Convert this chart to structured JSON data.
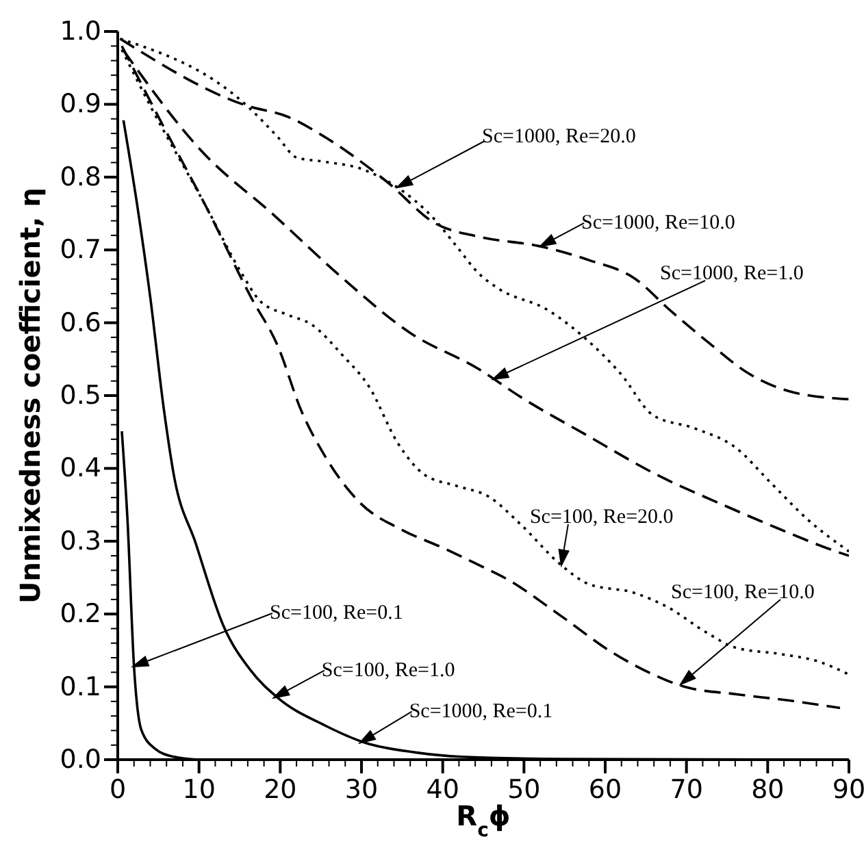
{
  "chart_data": {
    "type": "line",
    "xlabel": "R$_{c}$ϕ",
    "ylabel": "Unmixedness coefficient, η",
    "xlim": [
      0,
      90
    ],
    "ylim": [
      0,
      1
    ],
    "xticks": [
      0,
      {
        "value": 2,
        "label": null
      },
      {
        "value": 4,
        "label": null
      },
      {
        "value": 6,
        "label": null
      },
      {
        "value": 8,
        "label": null
      },
      10,
      {
        "value": 12,
        "label": null
      },
      {
        "value": 14,
        "label": null
      },
      {
        "value": 16,
        "label": null
      },
      {
        "value": 18,
        "label": null
      },
      20,
      {
        "value": 22,
        "label": null
      },
      {
        "value": 24,
        "label": null
      },
      {
        "value": 26,
        "label": null
      },
      {
        "value": 28,
        "label": null
      },
      30,
      {
        "value": 32,
        "label": null
      },
      {
        "value": 34,
        "label": null
      },
      {
        "value": 36,
        "label": null
      },
      {
        "value": 38,
        "label": null
      },
      40,
      {
        "value": 42,
        "label": null
      },
      {
        "value": 44,
        "label": null
      },
      {
        "value": 46,
        "label": null
      },
      {
        "value": 48,
        "label": null
      },
      50,
      {
        "value": 52,
        "label": null
      },
      {
        "value": 54,
        "label": null
      },
      {
        "value": 56,
        "label": null
      },
      {
        "value": 58,
        "label": null
      },
      60,
      {
        "value": 62,
        "label": null
      },
      {
        "value": 64,
        "label": null
      },
      {
        "value": 66,
        "label": null
      },
      {
        "value": 68,
        "label": null
      },
      70,
      {
        "value": 72,
        "label": null
      },
      {
        "value": 74,
        "label": null
      },
      {
        "value": 76,
        "label": null
      },
      {
        "value": 78,
        "label": null
      },
      80,
      {
        "value": 82,
        "label": null
      },
      {
        "value": 84,
        "label": null
      },
      {
        "value": 86,
        "label": null
      },
      {
        "value": 88,
        "label": null
      },
      90
    ],
    "yticks": [
      {
        "value": 0,
        "label": "0.0"
      },
      {
        "value": 0.02,
        "label": null
      },
      {
        "value": 0.04,
        "label": null
      },
      {
        "value": 0.06,
        "label": null
      },
      {
        "value": 0.08,
        "label": null
      },
      0.1,
      {
        "value": 0.12,
        "label": null
      },
      {
        "value": 0.14,
        "label": null
      },
      {
        "value": 0.16,
        "label": null
      },
      {
        "value": 0.18,
        "label": null
      },
      0.2,
      {
        "value": 0.22,
        "label": null
      },
      {
        "value": 0.24,
        "label": null
      },
      {
        "value": 0.26,
        "label": null
      },
      {
        "value": 0.28,
        "label": null
      },
      0.3,
      {
        "value": 0.32,
        "label": null
      },
      {
        "value": 0.34,
        "label": null
      },
      {
        "value": 0.36,
        "label": null
      },
      {
        "value": 0.38,
        "label": null
      },
      0.4,
      {
        "value": 0.42,
        "label": null
      },
      {
        "value": 0.44,
        "label": null
      },
      {
        "value": 0.46,
        "label": null
      },
      {
        "value": 0.48,
        "label": null
      },
      0.5,
      {
        "value": 0.52,
        "label": null
      },
      {
        "value": 0.54,
        "label": null
      },
      {
        "value": 0.56,
        "label": null
      },
      {
        "value": 0.58,
        "label": null
      },
      0.6,
      {
        "value": 0.62,
        "label": null
      },
      {
        "value": 0.64,
        "label": null
      },
      {
        "value": 0.66,
        "label": null
      },
      {
        "value": 0.68,
        "label": null
      },
      0.7,
      {
        "value": 0.72,
        "label": null
      },
      {
        "value": 0.74,
        "label": null
      },
      {
        "value": 0.76,
        "label": null
      },
      {
        "value": 0.78,
        "label": null
      },
      0.8,
      {
        "value": 0.82,
        "label": null
      },
      {
        "value": 0.84,
        "label": null
      },
      {
        "value": 0.86,
        "label": null
      },
      {
        "value": 0.88,
        "label": null
      },
      0.9,
      {
        "value": 0.92,
        "label": null
      },
      {
        "value": 0.94,
        "label": null
      },
      {
        "value": 0.96,
        "label": null
      },
      {
        "value": 0.98,
        "label": null
      },
      {
        "value": 1,
        "label": "1.0"
      }
    ],
    "marker": "none",
    "series": [
      {
        "color": "#000000",
        "line_style": "dotted",
        "x": [
          0.3,
          15.9,
          19.7,
          22,
          25.5,
          29.8,
          34.4,
          39,
          41.7,
          44.5,
          46.7,
          53,
          57.5,
          61.9,
          65.9,
          71,
          76,
          80.4,
          85,
          90
        ],
        "values": [
          0.99,
          0.898,
          0.855,
          0.827,
          0.821,
          0.812,
          0.786,
          0.742,
          0.705,
          0.667,
          0.648,
          0.617,
          0.579,
          0.53,
          0.473,
          0.455,
          0.429,
          0.38,
          0.329,
          0.286
        ]
      },
      {
        "color": "#000000",
        "line_style": "dashed",
        "x": [
          0.3,
          15.9,
          20.9,
          25.5,
          33.2,
          39,
          44.5,
          52,
          58,
          63.6,
          68,
          72.7,
          77.7,
          83.3,
          90
        ],
        "values": [
          0.99,
          0.898,
          0.883,
          0.855,
          0.793,
          0.737,
          0.718,
          0.705,
          0.686,
          0.661,
          0.617,
          0.573,
          0.53,
          0.504,
          0.495
        ]
      },
      {
        "color": "#000000",
        "line_style": "dashed",
        "x": [
          0.7,
          10.3,
          19.2,
          27.7,
          36,
          44.5,
          49.6,
          57.5,
          66.4,
          74.9,
          81.6,
          87.9,
          90
        ],
        "values": [
          0.974,
          0.836,
          0.748,
          0.661,
          0.586,
          0.536,
          0.498,
          0.447,
          0.391,
          0.348,
          0.316,
          0.288,
          0.28
        ]
      },
      {
        "color": "#000000",
        "line_style": "dotted",
        "x": [
          0.5,
          4,
          10.8,
          15.3,
          17.5,
          20.9,
          23.8,
          27.7,
          31,
          34.4,
          37.8,
          41.7,
          45.7,
          49.6,
          54.6,
          58,
          63.6,
          67.6,
          72.7,
          76,
          81.6,
          86.2,
          90
        ],
        "values": [
          0.975,
          0.898,
          0.761,
          0.667,
          0.63,
          0.611,
          0.598,
          0.555,
          0.511,
          0.436,
          0.391,
          0.376,
          0.361,
          0.323,
          0.267,
          0.241,
          0.229,
          0.21,
          0.173,
          0.154,
          0.145,
          0.135,
          0.117
        ]
      },
      {
        "color": "#000000",
        "line_style": "dashed",
        "x": [
          0.5,
          5.7,
          10.8,
          16.4,
          19.7,
          22.6,
          25.5,
          29.8,
          34.9,
          40,
          44.5,
          47.9,
          54.6,
          60.9,
          65.9,
          69.8,
          76,
          82.8,
          88.9
        ],
        "values": [
          0.98,
          0.868,
          0.761,
          0.635,
          0.568,
          0.479,
          0.417,
          0.353,
          0.316,
          0.291,
          0.267,
          0.248,
          0.197,
          0.147,
          0.117,
          0.1,
          0.09,
          0.081,
          0.071
        ]
      },
      {
        "color": "#000000",
        "line_style": "solid",
        "x": [
          0.5,
          1.2,
          2,
          2.9,
          4.6,
          6.9,
          10
        ],
        "values": [
          0.451,
          0.329,
          0.128,
          0.041,
          0.015,
          0.004,
          0
        ]
      },
      {
        "color": "#000000",
        "line_style": "solid",
        "x": [
          0.7,
          2.4,
          4,
          5.7,
          6.9,
          9.6,
          13,
          16.4,
          19.7,
          25.5,
          30.5,
          36.6,
          42.3,
          55,
          90
        ],
        "values": [
          0.878,
          0.761,
          0.635,
          0.479,
          0.391,
          0.297,
          0.184,
          0.122,
          0.085,
          0.047,
          0.023,
          0.01,
          0.004,
          0.001,
          0
        ]
      }
    ],
    "annotations": [
      "Sc=1000, Re=20.0",
      {
        "text": "Sc=1000, Re=10.0",
        "x": 52,
        "y": 0.705
      },
      "Sc=1000, Re=1.0",
      {
        "text": "Sc=100, Re=20.0",
        "x": 54.6,
        "y": 0.267
      },
      "Sc=100, Re=10.0",
      "Sc=100, Re=0.1",
      {
        "text": "Sc=100, Re=1.0",
        "x": 19.2,
        "y": 0.085
      },
      {
        "text": "Sc=1000, Re=0.1",
        "x": 29.8,
        "y": 0.023
      }
    ]
  }
}
